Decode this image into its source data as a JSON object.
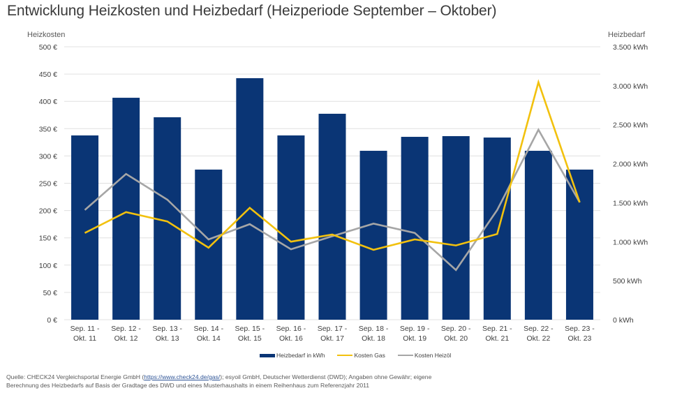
{
  "chart_data": {
    "type": "bar",
    "title": "Entwicklung Heizkosten und Heizbedarf (Heizperiode September – Oktober)",
    "ylabel_left": "Heizkosten",
    "ylabel_right": "Heizbedarf",
    "ylim_left": [
      0,
      500
    ],
    "ylim_right": [
      0,
      3500
    ],
    "yticks_left": [
      "0 €",
      "50 €",
      "100 €",
      "150 €",
      "200 €",
      "250 €",
      "300 €",
      "350 €",
      "400 €",
      "450 €",
      "500 €"
    ],
    "yticks_right": [
      "0 kWh",
      "500 kWh",
      "1.000 kWh",
      "1.500 kWh",
      "2.000 kWh",
      "2.500 kWh",
      "3.000 kWh",
      "3.500 kWh"
    ],
    "grid": true,
    "legend_position": "bottom",
    "categories": [
      [
        "Sep. 11 -",
        "Okt. 11"
      ],
      [
        "Sep. 12 -",
        "Okt. 12"
      ],
      [
        "Sep. 13 -",
        "Okt. 13"
      ],
      [
        "Sep. 14 -",
        "Okt. 14"
      ],
      [
        "Sep. 15 -",
        "Okt. 15"
      ],
      [
        "Sep. 16 -",
        "Okt. 16"
      ],
      [
        "Sep. 17 -",
        "Okt. 17"
      ],
      [
        "Sep. 18 -",
        "Okt. 18"
      ],
      [
        "Sep. 19 -",
        "Okt. 19"
      ],
      [
        "Sep. 20 -",
        "Okt. 20"
      ],
      [
        "Sep. 21 -",
        "Okt. 21"
      ],
      [
        "Sep. 22 -",
        "Okt. 22"
      ],
      [
        "Sep. 23 -",
        "Okt. 23"
      ]
    ],
    "series": [
      {
        "name": "Heizbedarf in kWh",
        "type": "bar",
        "axis": "right",
        "color": "#0a3575",
        "values": [
          2363,
          2846,
          2596,
          1925,
          3097,
          2363,
          2641,
          2166,
          2345,
          2354,
          2336,
          2166,
          1925
        ]
      },
      {
        "name": "Kosten Gas",
        "type": "line",
        "axis": "left",
        "color": "#f2c10e",
        "values": [
          159,
          197,
          180,
          132,
          205,
          143,
          156,
          128,
          147,
          136,
          157,
          435,
          215
        ]
      },
      {
        "name": "Kosten Heizöl",
        "type": "line",
        "axis": "left",
        "color": "#a6a6a6",
        "values": [
          201,
          267,
          220,
          147,
          175,
          129,
          153,
          176,
          159,
          91,
          201,
          348,
          215
        ]
      }
    ]
  },
  "source": {
    "prefix": "Quelle: CHECK24 Vergleichsportal Energie GmbH (",
    "link": "https://www.check24.de/gas/",
    "suffix": "); esyoil GmbH, Deutscher Wetterdienst (DWD); Angaben ohne Gewähr; eigene",
    "line2": "Berechnung des Heizbedarfs auf Basis der Gradtage des DWD und eines Musterhaushalts in einem Reihenhaus zum Referenzjahr 2011"
  }
}
